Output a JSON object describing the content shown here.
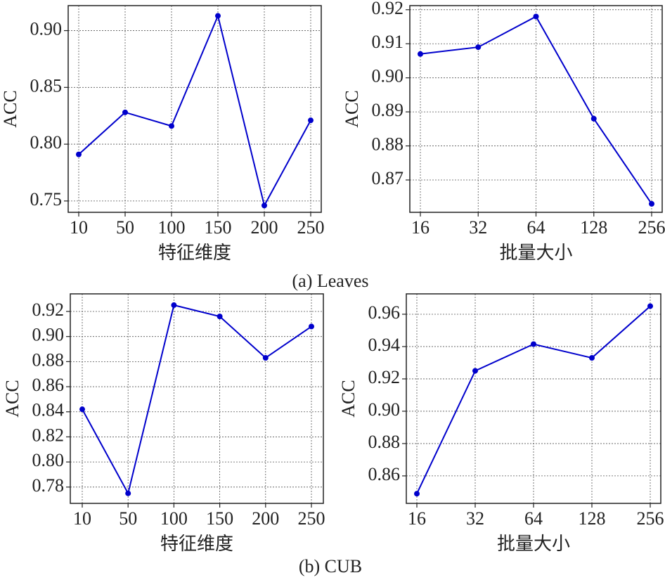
{
  "chart_data": [
    {
      "type": "line",
      "xlabel": "特征维度",
      "ylabel": "ACC",
      "categories": [
        "10",
        "50",
        "100",
        "150",
        "200",
        "250"
      ],
      "values": [
        0.791,
        0.828,
        0.816,
        0.913,
        0.746,
        0.821
      ],
      "color": "#0000cc",
      "ylim": [
        0.74,
        0.922
      ],
      "yticks": [
        0.75,
        {
          "value": 0.8,
          "label": "0.80"
        },
        0.85,
        {
          "value": 0.9,
          "label": "0.90"
        }
      ],
      "grid": true
    },
    {
      "type": "line",
      "xlabel": "批量大小",
      "ylabel": "ACC",
      "categories": [
        "16",
        "32",
        "64",
        "128",
        "256"
      ],
      "values": [
        0.907,
        0.909,
        0.918,
        0.888,
        0.863
      ],
      "color": "#0000cc",
      "ylim": [
        0.8605,
        0.9212
      ],
      "yticks": [
        0.87,
        0.88,
        0.89,
        {
          "value": 0.9,
          "label": "0.90"
        },
        0.91,
        0.92
      ],
      "grid": true
    },
    {
      "type": "line",
      "xlabel": "特征维度",
      "ylabel": "ACC",
      "categories": [
        "10",
        "50",
        "100",
        "150",
        "200",
        "250"
      ],
      "values": [
        0.842,
        0.775,
        0.925,
        0.916,
        0.883,
        0.908
      ],
      "color": "#0000cc",
      "ylim": [
        0.767,
        0.934
      ],
      "yticks": [
        0.78,
        {
          "value": 0.8,
          "label": "0.80"
        },
        0.82,
        0.84,
        0.86,
        0.88,
        {
          "value": 0.9,
          "label": "0.90"
        },
        0.92
      ],
      "grid": true
    },
    {
      "type": "line",
      "xlabel": "批量大小",
      "ylabel": "ACC",
      "categories": [
        "16",
        "32",
        "64",
        "128",
        "256"
      ],
      "values": [
        0.849,
        0.925,
        0.9415,
        0.933,
        0.965
      ],
      "color": "#0000cc",
      "ylim": [
        0.843,
        0.9726
      ],
      "yticks": [
        0.86,
        0.88,
        {
          "value": 0.9,
          "label": "0.90"
        },
        0.92,
        0.94,
        0.96
      ],
      "grid": true
    }
  ],
  "captions": [
    "(a) Leaves",
    "(b) CUB"
  ]
}
